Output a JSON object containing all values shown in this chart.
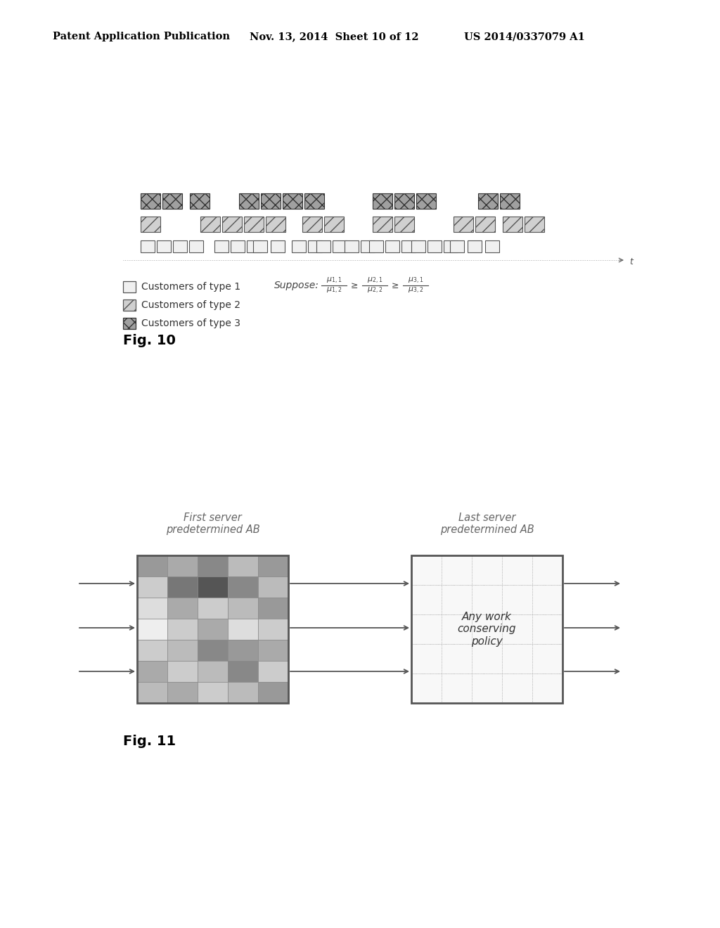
{
  "header_left": "Patent Application Publication",
  "header_mid": "Nov. 13, 2014  Sheet 10 of 12",
  "header_right": "US 2014/0337079 A1",
  "bg_color": "#ffffff",
  "fig10_label": "Fig. 10",
  "fig11_label": "Fig. 11",
  "legend_items": [
    {
      "label": "Customers of type 1",
      "hatch": "",
      "facecolor": "#f0f0f0",
      "edgecolor": "#555555"
    },
    {
      "label": "Customers of type 2",
      "hatch": "//",
      "facecolor": "#d0d0d0",
      "edgecolor": "#555555"
    },
    {
      "label": "Customers of type 3",
      "hatch": "xx",
      "facecolor": "#a0a0a0",
      "edgecolor": "#333333"
    }
  ],
  "suppose_text": "Suppose:",
  "first_server_label": "First server\npredetermined AB",
  "last_server_label": "Last server\npredetermined AB",
  "any_work_label": "Any work\nconserving\npolicy",
  "fig11_tile_colors": [
    [
      "#999999",
      "#aaaaaa",
      "#888888",
      "#bbbbbb",
      "#999999"
    ],
    [
      "#cccccc",
      "#777777",
      "#555555",
      "#888888",
      "#bbbbbb"
    ],
    [
      "#dddddd",
      "#aaaaaa",
      "#cccccc",
      "#bbbbbb",
      "#999999"
    ],
    [
      "#eeeeee",
      "#cccccc",
      "#aaaaaa",
      "#dddddd",
      "#cccccc"
    ],
    [
      "#cccccc",
      "#bbbbbb",
      "#888888",
      "#999999",
      "#aaaaaa"
    ],
    [
      "#aaaaaa",
      "#cccccc",
      "#bbbbbb",
      "#888888",
      "#cccccc"
    ],
    [
      "#bbbbbb",
      "#aaaaaa",
      "#cccccc",
      "#bbbbbb",
      "#999999"
    ]
  ]
}
